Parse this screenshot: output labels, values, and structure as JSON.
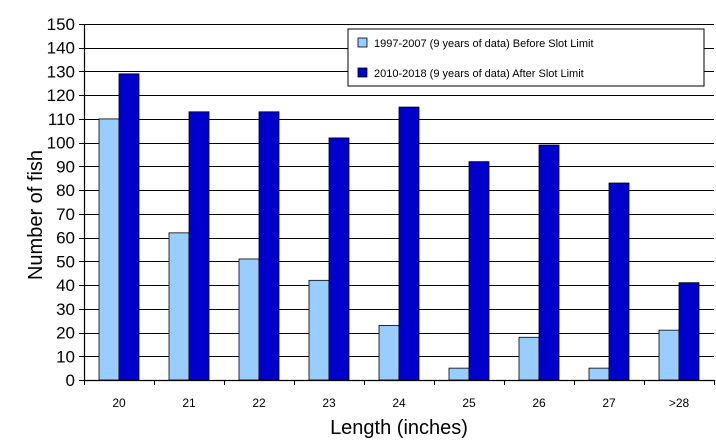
{
  "chart_data": {
    "type": "bar",
    "title": "",
    "xlabel": "Length (inches)",
    "ylabel": "Number of fish",
    "categories": [
      "20",
      "21",
      "22",
      "23",
      "24",
      "25",
      "26",
      "27",
      ">28"
    ],
    "ylim": [
      0,
      150
    ],
    "yticks": [
      0,
      10,
      20,
      30,
      40,
      50,
      60,
      70,
      80,
      90,
      100,
      110,
      120,
      130,
      140,
      150
    ],
    "grid": true,
    "legend_position": "top-right",
    "series": [
      {
        "name": "1997-2007 (9 years of data) Before Slot Limit",
        "color": "#99ccff",
        "values": [
          110,
          62,
          51,
          42,
          23,
          5,
          18,
          5,
          21
        ]
      },
      {
        "name": "2010-2018 (9 years of data) After Slot Limit",
        "color": "#0000cc",
        "values": [
          129,
          113,
          113,
          102,
          115,
          92,
          99,
          83,
          41
        ]
      }
    ]
  }
}
